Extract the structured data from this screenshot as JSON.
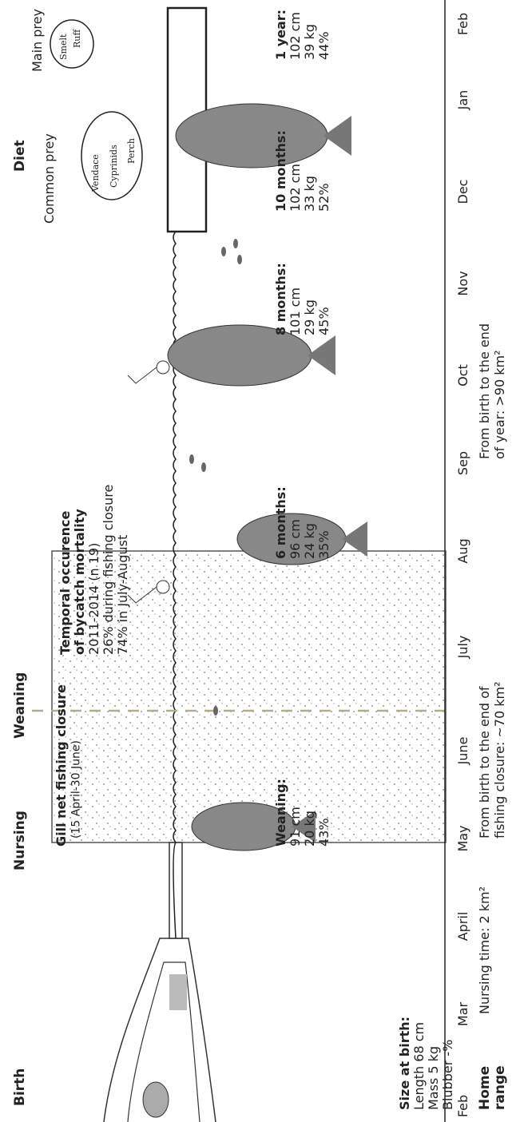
{
  "headers": [
    "Birth",
    "Nursing",
    "Weaning",
    "Diet"
  ],
  "months": [
    "Feb",
    "Mar",
    "April",
    "May",
    "June",
    "July",
    "Aug",
    "Sep",
    "Oct",
    "Nov",
    "Dec",
    "Jan",
    "Feb"
  ],
  "stages": [
    {
      "title": "Size at birth:",
      "lines": [
        "Length 68 cm",
        "Mass 5 kg",
        "Blubber -%"
      ]
    },
    {
      "title": "Weaning:",
      "lines": [
        "91 cm",
        "20 kg",
        "43%"
      ]
    },
    {
      "title": "6 months:",
      "lines": [
        "96 cm",
        "24 kg",
        "35%"
      ]
    },
    {
      "title": "8 months:",
      "lines": [
        "101 cm",
        "29 kg",
        "45%"
      ]
    },
    {
      "title": "10 months:",
      "lines": [
        "102 cm",
        "33 kg",
        "52%"
      ]
    },
    {
      "title": "1 year:",
      "lines": [
        "102 cm",
        "39 kg",
        "44%"
      ]
    }
  ],
  "closure": {
    "title": "Gill net fishing closure",
    "subtitle": "(15 April-30 June)"
  },
  "bycatch": {
    "title": [
      "Temporal occurence",
      "of bycatch mortality"
    ],
    "lines": [
      "2011-2014 (n 19)",
      "26% during fishing closure",
      "74%  in July-August"
    ]
  },
  "diet": {
    "common_label": "Common prey",
    "common": [
      "Vendace",
      "Cyprinids",
      "Perch"
    ],
    "main_label": "Main prey",
    "main": [
      "Smelt",
      "Ruff"
    ]
  },
  "home_range": {
    "label": [
      "Home",
      "range"
    ],
    "entries": [
      [
        "Nursing time: 2 km²"
      ],
      [
        "From birth to the end of",
        "fishing closure: ~70 km²"
      ],
      [
        "From birth to the end",
        "of year: >90 km²"
      ]
    ]
  }
}
